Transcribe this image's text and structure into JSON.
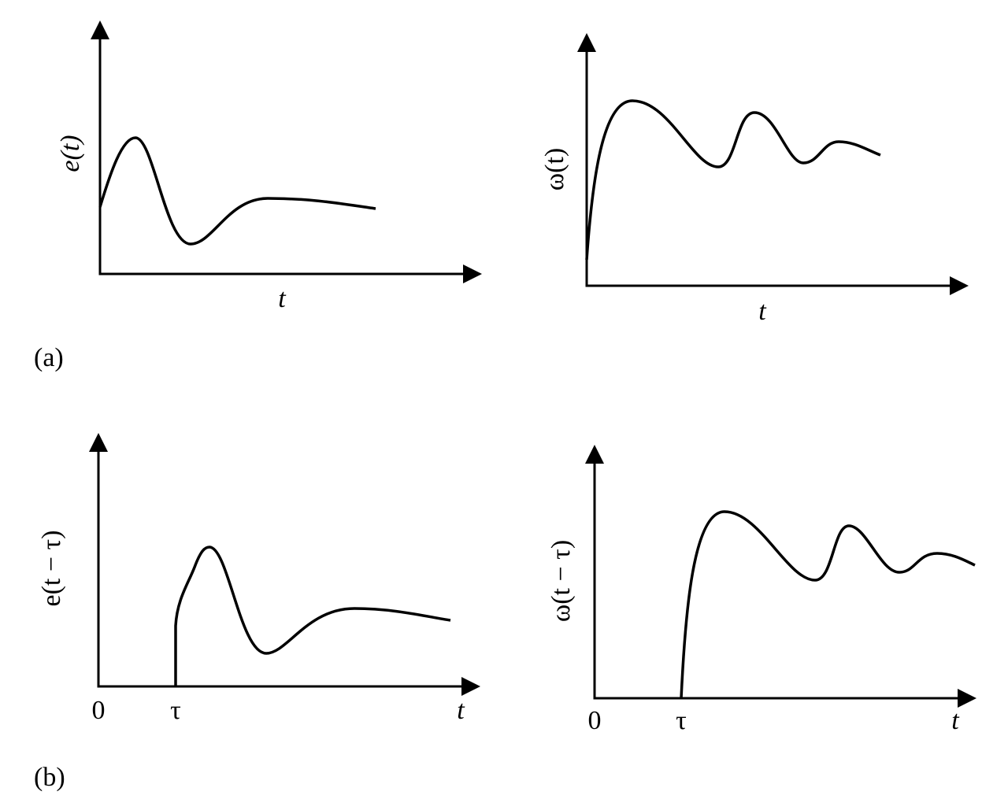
{
  "panels": [
    {
      "label": "(a)",
      "plots": [
        {
          "y_label": "e(t)",
          "x_label": "t"
        },
        {
          "y_label": "ω(t)",
          "x_label": "t"
        }
      ]
    },
    {
      "label": "(b)",
      "plots": [
        {
          "y_label": "e(t − τ)",
          "x_label": "t",
          "origin_label": "0",
          "delay_label": "τ"
        },
        {
          "y_label": "ω(t − τ)",
          "x_label": "t",
          "origin_label": "0",
          "delay_label": "τ"
        }
      ]
    }
  ]
}
